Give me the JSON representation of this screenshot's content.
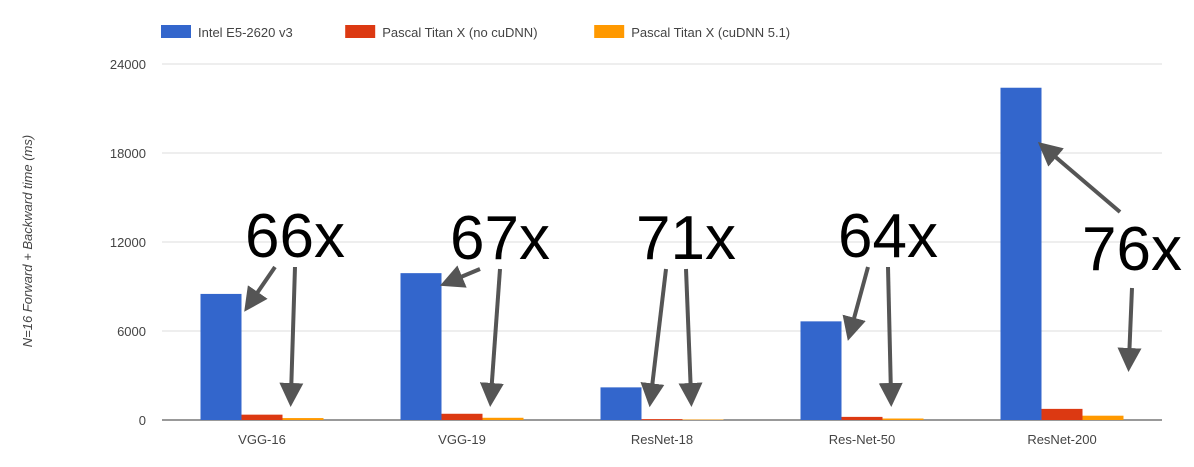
{
  "chart_data": {
    "type": "bar",
    "title": "",
    "xlabel": "",
    "ylabel": "N=16 Forward + Backward time (ms)",
    "ylim": [
      0,
      24000
    ],
    "yticks": [
      0,
      6000,
      12000,
      18000,
      24000
    ],
    "grid": true,
    "legend_position": "top-left",
    "categories": [
      "VGG-16",
      "VGG-19",
      "ResNet-18",
      "Res-Net-50",
      "ResNet-200"
    ],
    "series": [
      {
        "name": "Intel E5-2620 v3",
        "color": "#3366cc",
        "values": [
          8500,
          9900,
          2200,
          6650,
          22400
        ]
      },
      {
        "name": "Pascal Titan X (no cuDNN)",
        "color": "#dc3912",
        "values": [
          360,
          420,
          60,
          210,
          750
        ]
      },
      {
        "name": "Pascal Titan X (cuDNN 5.1)",
        "color": "#ff9900",
        "values": [
          130,
          150,
          30,
          100,
          290
        ]
      }
    ],
    "annotations": [
      "66x",
      "67x",
      "71x",
      "64x",
      "76x"
    ]
  }
}
